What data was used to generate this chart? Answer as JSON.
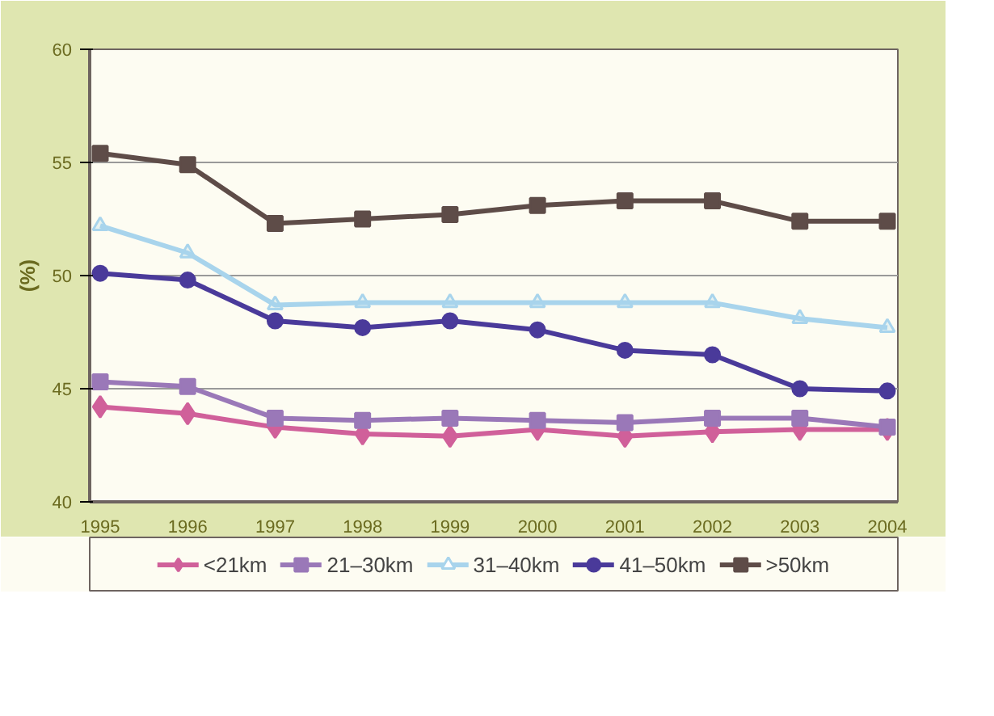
{
  "chart_data": {
    "type": "line",
    "ylabel": "(%)",
    "categories": [
      "1995",
      "1996",
      "1997",
      "1998",
      "1999",
      "2000",
      "2001",
      "2002",
      "2003",
      "2004"
    ],
    "series": [
      {
        "name": "<21km",
        "color": "#d0609a",
        "marker": "diamond",
        "values": [
          44.2,
          43.9,
          43.3,
          43.0,
          42.9,
          43.2,
          42.9,
          43.1,
          43.2,
          43.2
        ]
      },
      {
        "name": "21–30km",
        "color": "#9a78b8",
        "marker": "square",
        "values": [
          45.3,
          45.1,
          43.7,
          43.6,
          43.7,
          43.6,
          43.5,
          43.7,
          43.7,
          43.3
        ]
      },
      {
        "name": "31–40km",
        "color": "#a8d4ec",
        "marker": "triangle",
        "values": [
          52.2,
          51.0,
          48.7,
          48.8,
          48.8,
          48.8,
          48.8,
          48.8,
          48.1,
          47.7
        ]
      },
      {
        "name": "41–50km",
        "color": "#4a3a9a",
        "marker": "circle",
        "values": [
          50.1,
          49.8,
          48.0,
          47.7,
          48.0,
          47.6,
          46.7,
          46.5,
          45.0,
          44.9
        ]
      },
      {
        "name": ">50km",
        "color": "#5e4c48",
        "marker": "square",
        "values": [
          55.4,
          54.9,
          52.3,
          52.5,
          52.7,
          53.1,
          53.3,
          53.3,
          52.4,
          52.4
        ]
      }
    ],
    "ylim": [
      40,
      60
    ],
    "yticks": [
      40,
      45,
      50,
      55,
      60
    ],
    "grid": "y",
    "legend": "bottom"
  }
}
